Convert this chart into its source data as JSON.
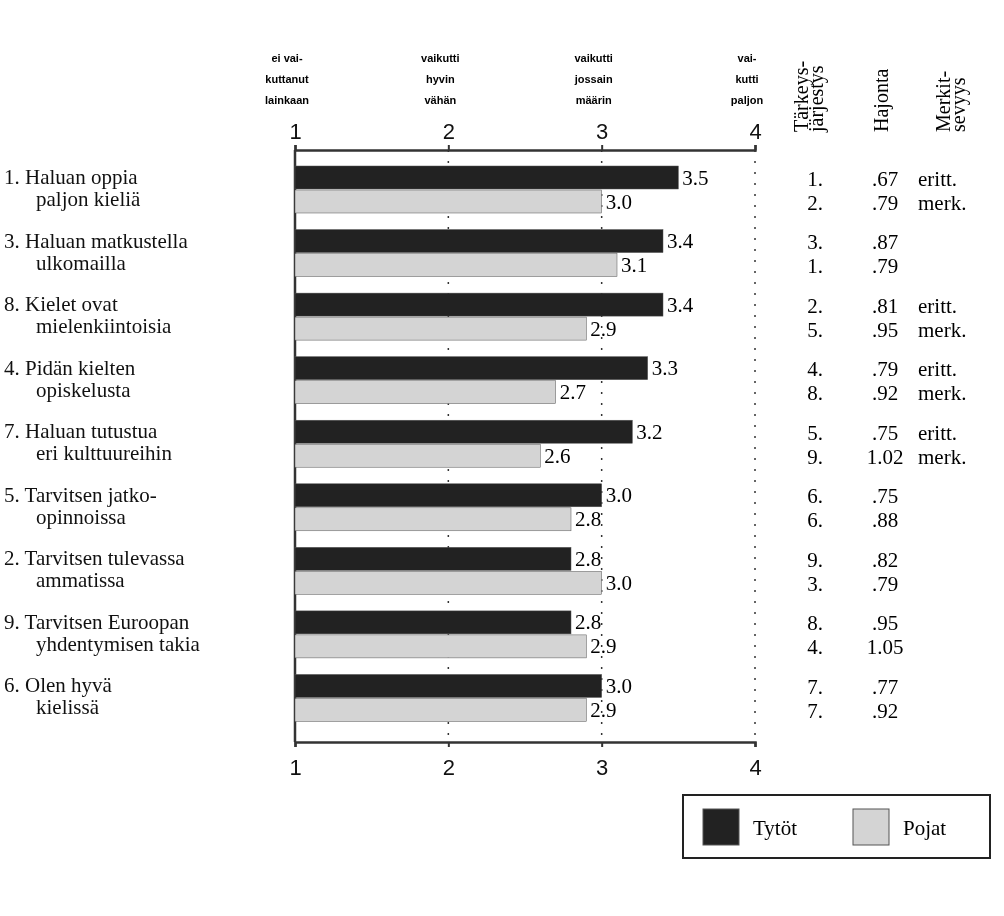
{
  "chart_data": {
    "type": "bar",
    "orientation": "horizontal",
    "categories": [
      "1. Haluan oppia\npaljon kieliä",
      "3. Haluan matkustella\nulkomailla",
      "8. Kielet ovat\nmielenkiintoisia",
      "4. Pidän kielten\nopiskelusta",
      "7. Haluan tutustua\neri kulttuureihin",
      "5. Tarvitsen jatko-\nopinnoissa",
      "2. Tarvitsen tulevassa\nammatissa",
      "9. Tarvitsen Euroopan\nyhdentymisen takia",
      "6. Olen hyvä\nkielissä"
    ],
    "series": [
      {
        "name": "Tytöt",
        "color": "#222222",
        "values": [
          3.5,
          3.4,
          3.4,
          3.3,
          3.2,
          3.0,
          2.8,
          2.8,
          3.0
        ],
        "value_labels": [
          "3.5",
          "3.4",
          "3.4",
          "3.3",
          "3.2",
          "3.0",
          "2.8",
          "2.8",
          "3.0"
        ]
      },
      {
        "name": "Pojat",
        "color": "#d4d4d4",
        "values": [
          3.0,
          3.1,
          2.9,
          2.7,
          2.6,
          2.8,
          3.0,
          2.9,
          2.9
        ],
        "value_labels": [
          "3.0",
          "3.1",
          "2.9",
          "2.7",
          "2.6",
          "2.8",
          "3.0",
          "2.9",
          "2.9"
        ]
      }
    ],
    "xlim": [
      1,
      4
    ],
    "xticks": [
      1,
      2,
      3,
      4
    ],
    "x2lim": [
      1,
      4
    ],
    "x2ticks": [
      1,
      2,
      3,
      4
    ],
    "grid": "x",
    "legend": "bottom right",
    "annotations": [
      "ei vai-\nkuttanut\nlainkaan",
      "vaikutti\nhyvin\nvähän",
      "vaikutti\njossain\nmäärin",
      "vai-\nkutti\npaljon",
      "Tärkeys-\njärjestys\tHajonta\tMerkit-\nsevyys",
      "1.\t.67\teritt.",
      "2.\t.79\tmerk.",
      "3.\t.87",
      "1.\t.79",
      "2.\t.81\teritt.",
      "5.\t.95\tmerk.",
      "4.\t.79\teritt.",
      "8.\t.92\tmerk.",
      "5.\t.75\teritt.",
      "9.\t1.02\tmerk.",
      "6.\t.75",
      "6.\t.88",
      "9.\t.82",
      "3.\t.79",
      "8.\t.95",
      "4.\t1.05",
      "7.\t.77",
      "7.\t.92"
    ]
  }
}
